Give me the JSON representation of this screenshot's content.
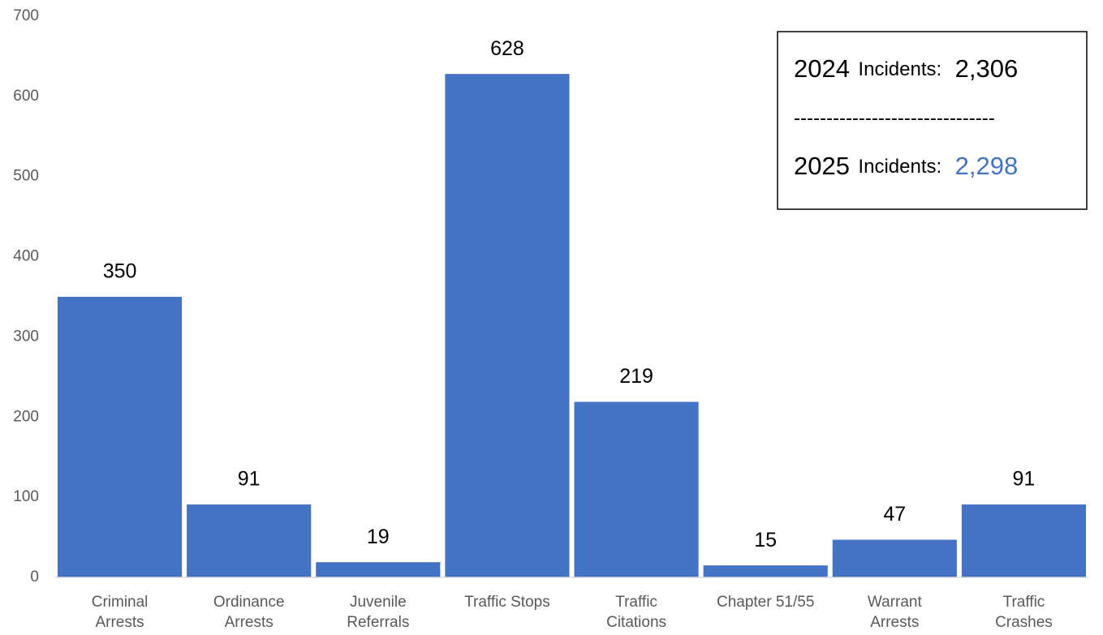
{
  "chart_data": {
    "type": "bar",
    "categories": [
      [
        "Criminal",
        "Arrests"
      ],
      [
        "Ordinance",
        "Arrests"
      ],
      [
        "Juvenile",
        "Referrals"
      ],
      [
        "Traffic Stops"
      ],
      [
        "Traffic",
        "Citations"
      ],
      [
        "Chapter 51/55"
      ],
      [
        "Warrant",
        "Arrests"
      ],
      [
        "Traffic",
        "Crashes"
      ]
    ],
    "values": [
      350,
      91,
      19,
      628,
      219,
      15,
      47,
      91
    ],
    "color": "#4472c4",
    "ylim": [
      0,
      700
    ],
    "yticks": [
      0,
      100,
      200,
      300,
      400,
      500,
      600,
      700
    ],
    "grid": false,
    "annotation": {
      "line1": {
        "year": "2024",
        "label": "Incidents:",
        "value": "2,306"
      },
      "separator": "-------------------------------",
      "line2": {
        "year": "2025",
        "label": "Incidents:",
        "value": "2,298",
        "value_color": "#4472c4"
      }
    }
  }
}
